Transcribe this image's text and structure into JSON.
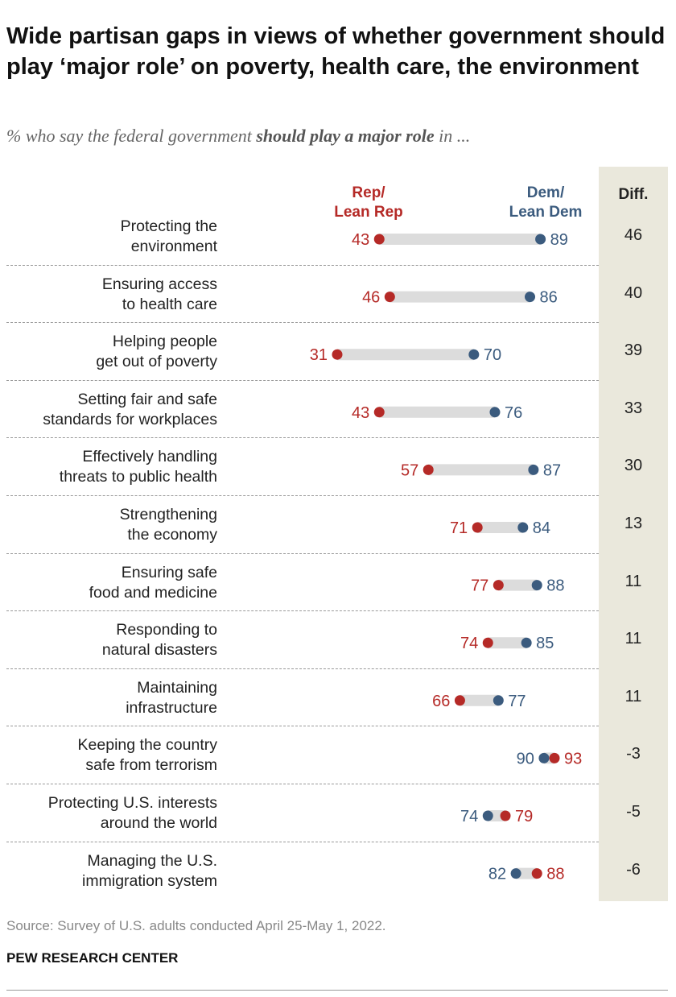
{
  "header": {
    "title": "Wide partisan gaps in views of whether government should play ‘major role’ on poverty, health care, the environment",
    "subtitle_pre": "% who say the federal government ",
    "subtitle_bold": "should play a major role",
    "subtitle_post": " in ..."
  },
  "columns": {
    "rep": "Rep/ Lean Rep",
    "dem": "Dem/ Lean Dem",
    "diff": "Diff."
  },
  "colors": {
    "rep": "#b52a27",
    "dem": "#3b5b7e",
    "bar": "#dcdcdc",
    "diff_bg": "#eae8dc"
  },
  "chart_data": {
    "type": "dot-plot",
    "series": [
      {
        "name": "Rep/ Lean Rep"
      },
      {
        "name": "Dem/ Lean Dem"
      }
    ],
    "rows": [
      {
        "label": "Protecting the environment",
        "rep": 43,
        "dem": 89,
        "diff": "46"
      },
      {
        "label": "Ensuring access to health care",
        "rep": 46,
        "dem": 86,
        "diff": "40"
      },
      {
        "label": "Helping people get out of poverty",
        "rep": 31,
        "dem": 70,
        "diff": "39"
      },
      {
        "label": "Setting fair and safe standards for workplaces",
        "rep": 43,
        "dem": 76,
        "diff": "33"
      },
      {
        "label": "Effectively handling threats to public health",
        "rep": 57,
        "dem": 87,
        "diff": "30"
      },
      {
        "label": "Strengthening the economy",
        "rep": 71,
        "dem": 84,
        "diff": "13"
      },
      {
        "label": "Ensuring safe food and medicine",
        "rep": 77,
        "dem": 88,
        "diff": "11"
      },
      {
        "label": "Responding to natural disasters",
        "rep": 74,
        "dem": 85,
        "diff": "11"
      },
      {
        "label": "Maintaining infrastructure",
        "rep": 66,
        "dem": 77,
        "diff": "11"
      },
      {
        "label": "Keeping the country safe from terrorism",
        "rep": 93,
        "dem": 90,
        "diff": "-3"
      },
      {
        "label": "Protecting U.S. interests around the world",
        "rep": 79,
        "dem": 74,
        "diff": "-5"
      },
      {
        "label": "Managing the U.S. immigration system",
        "rep": 88,
        "dem": 82,
        "diff": "-6"
      }
    ]
  },
  "footer": {
    "source": "Source: Survey of U.S. adults conducted April 25-May 1, 2022.",
    "brand": "PEW RESEARCH CENTER"
  }
}
